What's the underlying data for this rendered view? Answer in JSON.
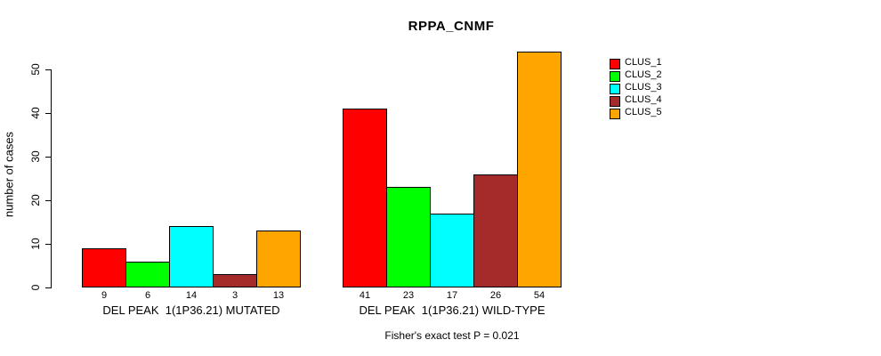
{
  "title": "RPPA_CNMF",
  "footnote": "Fisher's exact test P = 0.021",
  "chart_data": {
    "type": "bar",
    "title": "RPPA_CNMF",
    "xlabel": "",
    "ylabel": "number of cases",
    "categories": [
      "DEL PEAK  1(1P36.21) MUTATED",
      "DEL PEAK  1(1P36.21) WILD-TYPE"
    ],
    "series": [
      {
        "name": "CLUS_1",
        "color": "#FF0000",
        "values": [
          9,
          41
        ]
      },
      {
        "name": "CLUS_2",
        "color": "#00FF00",
        "values": [
          6,
          23
        ]
      },
      {
        "name": "CLUS_3",
        "color": "#00FFFF",
        "values": [
          14,
          17
        ]
      },
      {
        "name": "CLUS_4",
        "color": "#A52A2A",
        "values": [
          3,
          26
        ]
      },
      {
        "name": "CLUS_5",
        "color": "#FFA500",
        "values": [
          13,
          54
        ]
      }
    ],
    "yticks": [
      0,
      10,
      20,
      30,
      40,
      50
    ],
    "ylim": [
      0,
      55
    ],
    "grid": false,
    "bar_value_labels": true,
    "bar_border_color": "#000000",
    "legend_position": "right",
    "annotation": "Fisher's exact test P = 0.021"
  }
}
